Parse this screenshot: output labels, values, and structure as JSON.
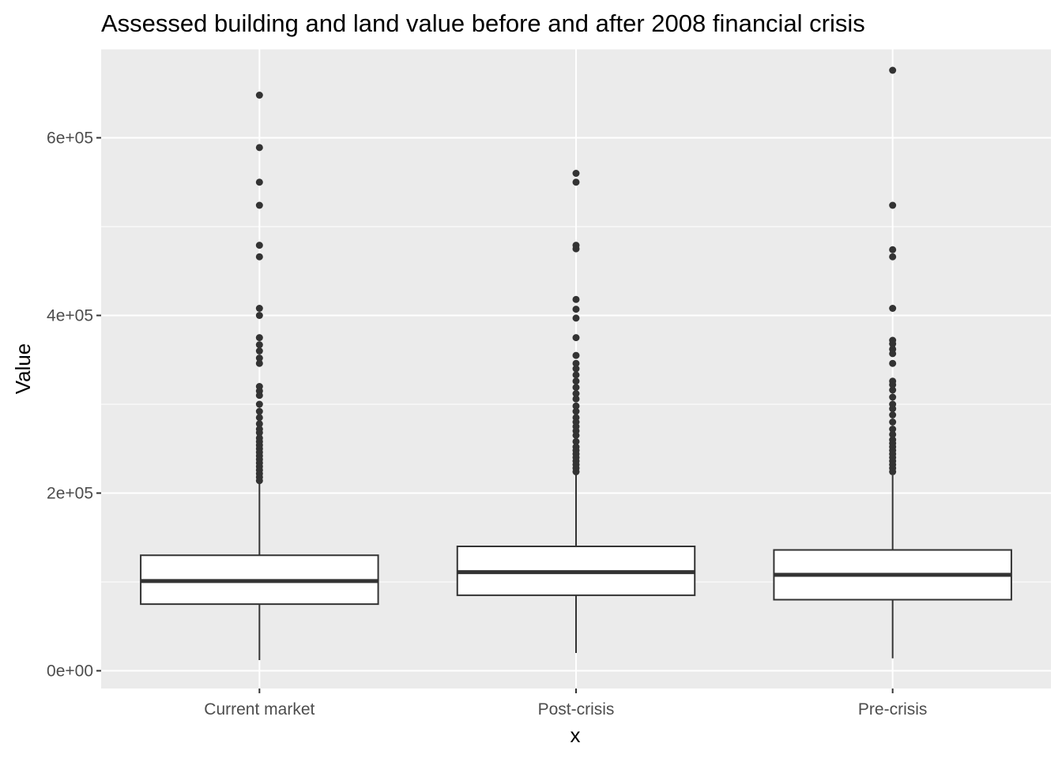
{
  "chart_data": {
    "type": "boxplot",
    "title": "Assessed building and land value before and after 2008 financial crisis",
    "xlabel": "x",
    "ylabel": "Value",
    "ylim": [
      -20000,
      700000
    ],
    "yticks": [
      0,
      200000,
      400000,
      600000
    ],
    "ytick_labels": [
      "0e+00",
      "2e+05",
      "4e+05",
      "6e+05"
    ],
    "grid": true,
    "legend": "none",
    "colors": {
      "panel_background": "#ebebeb",
      "grid": "#ffffff",
      "box_fill": "#ffffff",
      "box_line": "#333333",
      "outlier": "#333333",
      "tick_text": "#4d4d4d",
      "title_text": "#000000"
    },
    "categories": [
      "Current market",
      "Post-crisis",
      "Pre-crisis"
    ],
    "boxes": [
      {
        "category": "Current market",
        "whisker_low": 12000,
        "q1": 75000,
        "median": 101000,
        "q3": 130000,
        "whisker_high": 212000,
        "outliers": [
          648000,
          589000,
          550000,
          524000,
          479000,
          466000,
          408000,
          400000,
          375000,
          367000,
          360000,
          352000,
          346000,
          320000,
          315000,
          310000,
          300000,
          292000,
          285000,
          278000,
          272000,
          268000,
          262000,
          258000,
          254000,
          250000,
          246000,
          242000,
          238000,
          234000,
          230000,
          226000,
          222000,
          218000,
          214000
        ]
      },
      {
        "category": "Post-crisis",
        "whisker_low": 20000,
        "q1": 85000,
        "median": 111000,
        "q3": 140000,
        "whisker_high": 222000,
        "outliers": [
          560000,
          550000,
          479000,
          475000,
          418000,
          407000,
          397000,
          375000,
          355000,
          346000,
          340000,
          333000,
          326000,
          319000,
          312000,
          306000,
          298000,
          292000,
          285000,
          280000,
          275000,
          270000,
          265000,
          258000,
          252000,
          248000,
          244000,
          240000,
          236000,
          232000,
          228000,
          224000
        ]
      },
      {
        "category": "Pre-crisis",
        "whisker_low": 14000,
        "q1": 80000,
        "median": 108000,
        "q3": 136000,
        "whisker_high": 220000,
        "outliers": [
          676000,
          524000,
          474000,
          466000,
          408000,
          372000,
          368000,
          362000,
          357000,
          346000,
          326000,
          322000,
          316000,
          308000,
          300000,
          295000,
          288000,
          280000,
          272000,
          266000,
          260000,
          256000,
          252000,
          248000,
          244000,
          240000,
          236000,
          232000,
          228000,
          224000
        ]
      }
    ]
  }
}
